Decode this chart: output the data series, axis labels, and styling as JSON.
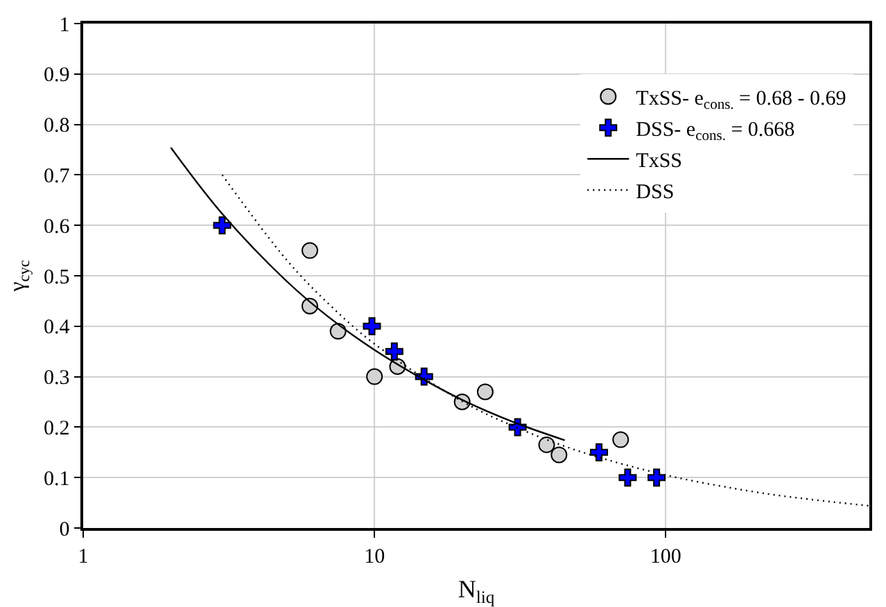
{
  "chart_data": {
    "type": "scatter",
    "xlabel": "N$_{liq}$",
    "ylabel": "γ$_{cyc}$",
    "log": "x",
    "xlim": [
      1,
      500
    ],
    "xticks": [
      1,
      10,
      100
    ],
    "ylim": [
      0,
      1
    ],
    "yticks": [
      0,
      0.1,
      0.2,
      0.3,
      0.4,
      0.5,
      0.6,
      0.7,
      0.8,
      0.9,
      1
    ],
    "grid": true,
    "legend": "top right",
    "series": [
      {
        "name": "TxSS- e$_{cons.}$ = 0.68 - 0.69",
        "marker": "circle",
        "color": "#d3d3d3",
        "x": [
          6,
          6,
          7.5,
          10,
          12,
          20,
          24,
          39,
          43,
          70
        ],
        "values": [
          0.55,
          0.44,
          0.39,
          0.3,
          0.32,
          0.25,
          0.27,
          0.165,
          0.145,
          0.175
        ]
      },
      {
        "name": "DSS- e$_{cons.}$ = 0.668",
        "marker": "cross",
        "color": "#0000ff",
        "x": [
          3,
          9.8,
          11.7,
          14.8,
          31,
          59,
          74,
          93
        ],
        "values": [
          0.6,
          0.4,
          0.35,
          0.3,
          0.2,
          0.15,
          0.1,
          0.1
        ]
      },
      {
        "name": "TxSS",
        "type": "line",
        "line_style": "solid",
        "color": "#000000",
        "x": [
          2,
          3,
          5,
          7,
          10,
          15,
          20,
          30,
          45
        ],
        "values": [
          0.754,
          0.623,
          0.489,
          0.417,
          0.353,
          0.292,
          0.254,
          0.21,
          0.174
        ]
      },
      {
        "name": "DSS",
        "type": "line",
        "line_style": "dotted",
        "color": "#000000",
        "x": [
          3,
          5,
          7,
          10,
          20,
          30,
          50,
          100,
          200,
          300,
          500
        ],
        "values": [
          0.7,
          0.531,
          0.443,
          0.365,
          0.251,
          0.202,
          0.153,
          0.105,
          0.072,
          0.058,
          0.044
        ]
      }
    ]
  }
}
